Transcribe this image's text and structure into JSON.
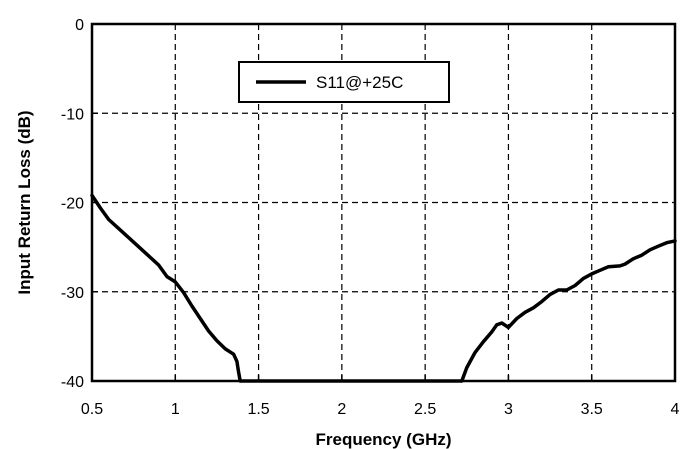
{
  "chart_data": {
    "type": "line",
    "title": "",
    "xlabel": "Frequency (GHz)",
    "ylabel": "Input Return Loss (dB)",
    "xlim": [
      0.5,
      4
    ],
    "ylim": [
      -40,
      0
    ],
    "x_ticks": [
      0.5,
      1,
      1.5,
      2,
      2.5,
      3,
      3.5,
      4
    ],
    "x_tick_labels": [
      "0.5",
      "1",
      "1.5",
      "2",
      "2.5",
      "3",
      "3.5",
      "4"
    ],
    "y_ticks": [
      0,
      -10,
      -20,
      -30,
      -40
    ],
    "y_tick_labels": [
      "0",
      "-10",
      "-20",
      "-30",
      "-40"
    ],
    "grid": true,
    "legend_position": "top-center",
    "series": [
      {
        "name": "S11@+25C",
        "color": "#000000",
        "segments": [
          [
            [
              0.5,
              -19.2
            ],
            [
              0.55,
              -20.6
            ],
            [
              0.6,
              -21.9
            ],
            [
              0.7,
              -23.6
            ],
            [
              0.8,
              -25.3
            ],
            [
              0.9,
              -27.0
            ],
            [
              0.95,
              -28.3
            ],
            [
              1.0,
              -28.9
            ],
            [
              1.05,
              -30.1
            ],
            [
              1.1,
              -31.6
            ],
            [
              1.2,
              -34.4
            ],
            [
              1.25,
              -35.5
            ],
            [
              1.3,
              -36.4
            ],
            [
              1.35,
              -37.0
            ],
            [
              1.37,
              -37.8
            ],
            [
              1.38,
              -39.0
            ],
            [
              1.39,
              -40.0
            ]
          ],
          [
            [
              2.72,
              -40.0
            ],
            [
              2.75,
              -38.5
            ],
            [
              2.8,
              -36.8
            ],
            [
              2.85,
              -35.6
            ],
            [
              2.9,
              -34.5
            ],
            [
              2.93,
              -33.7
            ],
            [
              2.96,
              -33.5
            ],
            [
              3.0,
              -34.0
            ],
            [
              3.05,
              -33.0
            ],
            [
              3.1,
              -32.3
            ],
            [
              3.15,
              -31.8
            ],
            [
              3.2,
              -31.1
            ],
            [
              3.25,
              -30.3
            ],
            [
              3.3,
              -29.8
            ],
            [
              3.35,
              -29.8
            ],
            [
              3.4,
              -29.3
            ],
            [
              3.45,
              -28.5
            ],
            [
              3.5,
              -28.0
            ],
            [
              3.55,
              -27.6
            ],
            [
              3.6,
              -27.2
            ],
            [
              3.67,
              -27.1
            ],
            [
              3.7,
              -26.9
            ],
            [
              3.75,
              -26.3
            ],
            [
              3.8,
              -25.9
            ],
            [
              3.85,
              -25.3
            ],
            [
              3.9,
              -24.9
            ],
            [
              3.95,
              -24.5
            ],
            [
              4.0,
              -24.3
            ]
          ]
        ]
      }
    ]
  }
}
